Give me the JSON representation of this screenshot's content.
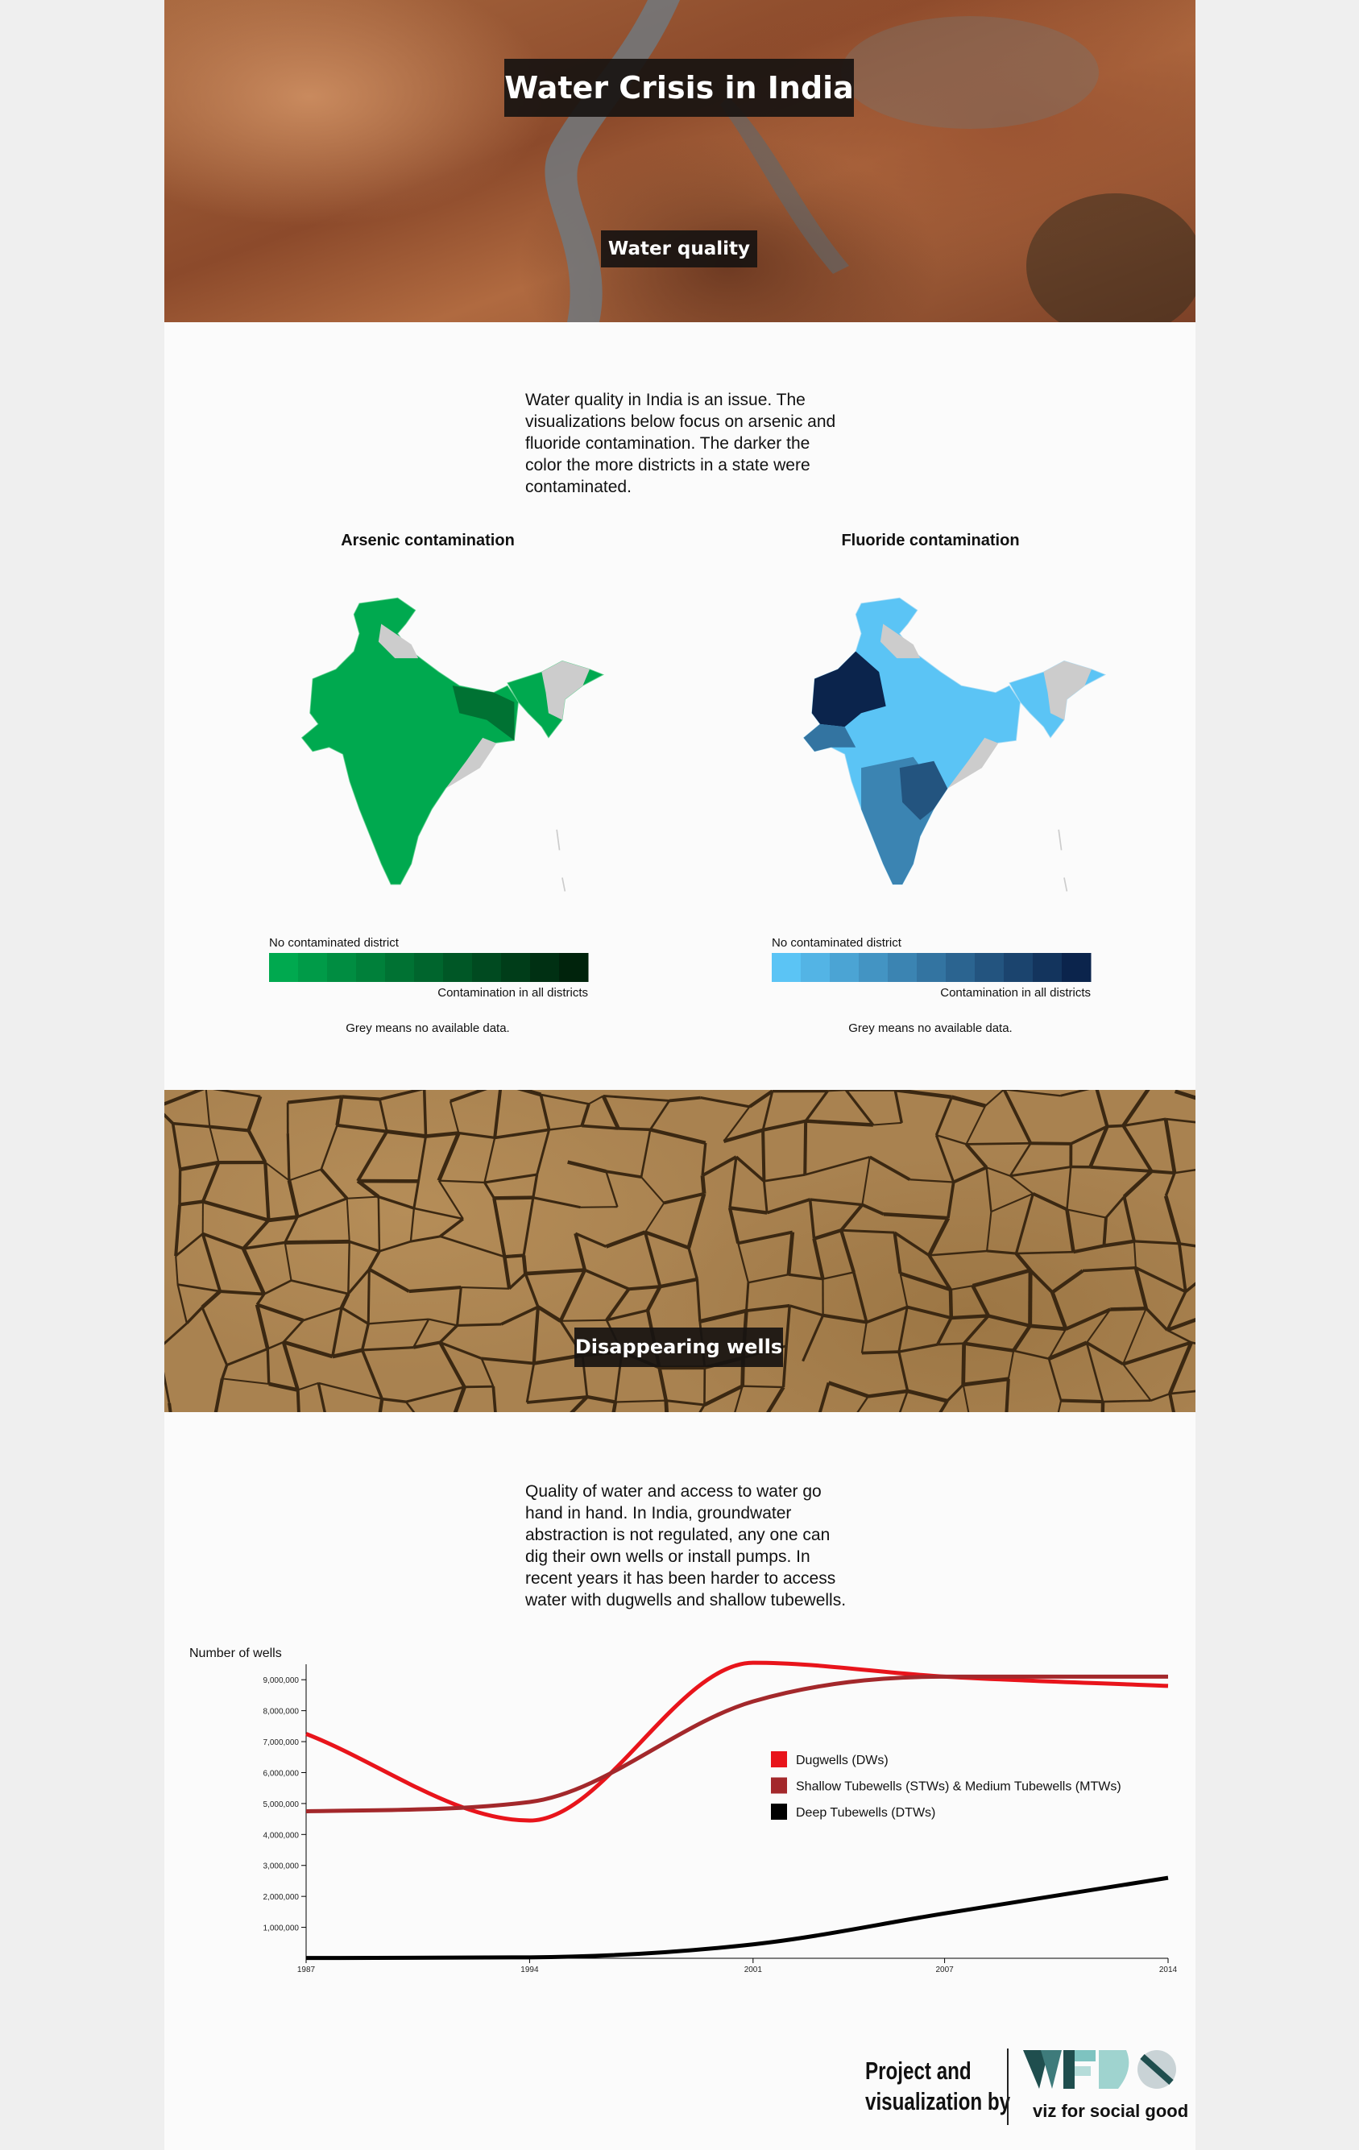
{
  "header": {
    "title": "Water Crisis in India",
    "subtitle": "Water quality"
  },
  "quality": {
    "text": "Water quality in India is an issue. The visualizations below focus on arsenic and fluoride contamination. The darker the color the more districts in a state were contaminated.",
    "arsenic": {
      "title": "Arsenic contamination",
      "legend_low": "No contaminated district",
      "legend_high": "Contamination in all districts",
      "note": "Grey means no available data.",
      "scale_colors": [
        "#00a94f",
        "#009b48",
        "#008d41",
        "#00803a",
        "#007233",
        "#00652d",
        "#005726",
        "#004a20",
        "#003d19",
        "#003013",
        "#00230c"
      ]
    },
    "fluoride": {
      "title": "Fluoride contamination",
      "legend_low": "No contaminated district",
      "legend_high": "Contamination in all districts",
      "note": "Grey means no available data.",
      "scale_colors": [
        "#5bc4f5",
        "#53b4e5",
        "#4ba4d4",
        "#4394c3",
        "#3b84b2",
        "#3374a1",
        "#2b6490",
        "#23547f",
        "#1b446e",
        "#13345d",
        "#0b244c"
      ]
    }
  },
  "wells": {
    "section_title": "Disappearing wells",
    "text": "Quality of water and access to water go hand in hand. In India, groundwater abstraction is not regulated, any one can dig their own wells or install pumps. In recent years it has been harder to access water with dugwells and shallow tubewells.",
    "chart_data": {
      "type": "line",
      "y_label": "Number of wells",
      "x": [
        1987,
        1994,
        2001,
        2007,
        2014
      ],
      "xlim": [
        1987,
        2014
      ],
      "xticks": [
        1987,
        1994,
        2001,
        2007,
        2014
      ],
      "ylim": [
        0,
        9500000
      ],
      "yticks": [
        {
          "value": 1000000,
          "label": "1,000,000"
        },
        {
          "value": 2000000,
          "label": "2,000,000"
        },
        {
          "value": 3000000,
          "label": "3,000,000"
        },
        {
          "value": 4000000,
          "label": "4,000,000"
        },
        {
          "value": 5000000,
          "label": "5,000,000"
        },
        {
          "value": 6000000,
          "label": "6,000,000"
        },
        {
          "value": 7000000,
          "label": "7,000,000"
        },
        {
          "value": 8000000,
          "label": "8,000,000"
        },
        {
          "value": 9000000,
          "label": "9,000,000"
        }
      ],
      "series": [
        {
          "name": "Dugwells (DWs)",
          "color": "#e8141b",
          "values": [
            7250000,
            4450000,
            9550000,
            9100000,
            8800000
          ]
        },
        {
          "name": "Shallow Tubewells (STWs) & Medium Tubewells (MTWs)",
          "color": "#a3282b",
          "values": [
            4750000,
            5050000,
            8300000,
            9100000,
            9100000
          ]
        },
        {
          "name": "Deep Tubewells (DTWs)",
          "color": "#000000",
          "values": [
            10000,
            30000,
            450000,
            1450000,
            2600000
          ]
        }
      ]
    }
  },
  "footer": {
    "credit": [
      "Project and",
      "visualization by"
    ],
    "org": "viz for social good"
  }
}
